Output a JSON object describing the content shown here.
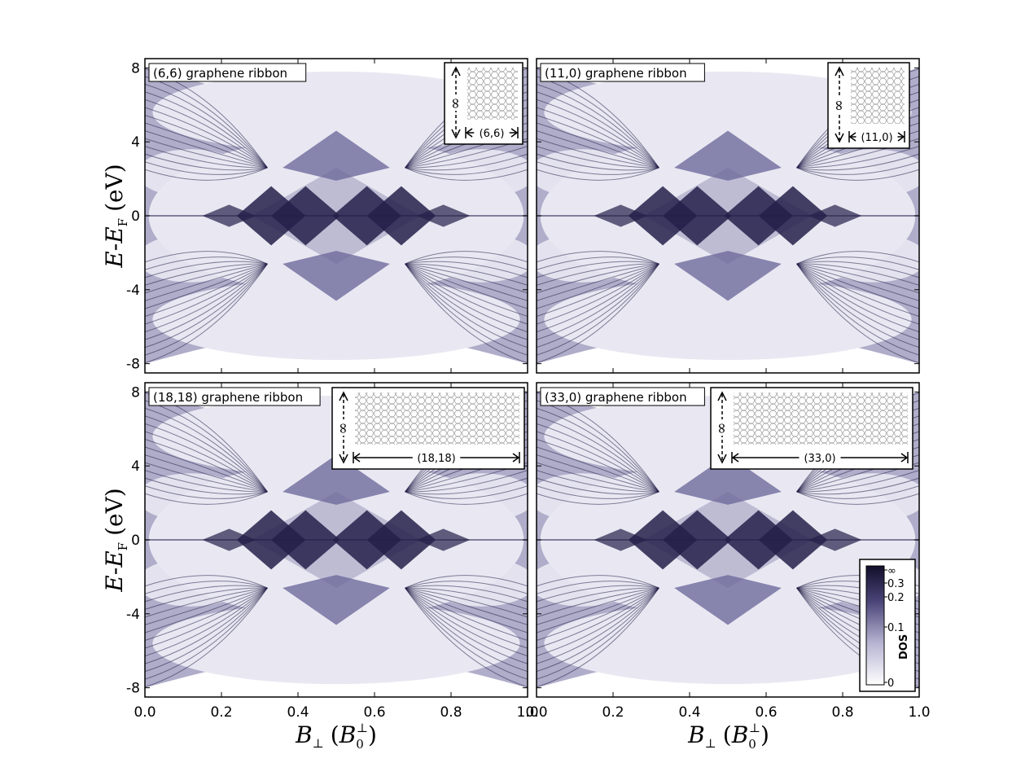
{
  "chart_data": [
    {
      "type": "heatmap",
      "title": "(6,6) graphene ribbon",
      "inset_label": "(6,6)",
      "inset_infinity": "∞",
      "xlabel": "",
      "ylabel": "E-E_F (eV)",
      "xlim": [
        0.0,
        1.0
      ],
      "ylim": [
        -8.5,
        8.5
      ],
      "yticks": [
        "8",
        "4",
        "0",
        "-4",
        "-8"
      ],
      "xticks": []
    },
    {
      "type": "heatmap",
      "title": "(11,0) graphene ribbon",
      "inset_label": "(11,0)",
      "inset_infinity": "∞",
      "xlabel": "",
      "ylabel": "",
      "xlim": [
        0.0,
        1.0
      ],
      "ylim": [
        -8.5,
        8.5
      ],
      "yticks": [],
      "xticks": []
    },
    {
      "type": "heatmap",
      "title": "(18,18) graphene ribbon",
      "inset_label": "(18,18)",
      "inset_infinity": "∞",
      "xlabel": "B⊥ (B0⊥)",
      "ylabel": "E-E_F (eV)",
      "xlim": [
        0.0,
        1.0
      ],
      "ylim": [
        -8.5,
        8.5
      ],
      "yticks": [
        "8",
        "4",
        "0",
        "-4",
        "-8"
      ],
      "xticks": [
        "0.0",
        "0.2",
        "0.4",
        "0.6",
        "0.8",
        "1.0"
      ]
    },
    {
      "type": "heatmap",
      "title": "(33,0) graphene ribbon",
      "inset_label": "(33,0)",
      "inset_infinity": "∞",
      "xlabel": "B⊥ (B0⊥)",
      "ylabel": "",
      "xlim": [
        0.0,
        1.0
      ],
      "ylim": [
        -8.5,
        8.5
      ],
      "yticks": [],
      "xticks": [
        "0.0",
        "0.2",
        "0.4",
        "0.6",
        "0.8",
        "1.0"
      ]
    }
  ],
  "ylabel_parts": {
    "e": "E",
    "dash": "-",
    "ef": "E",
    "sub": "F",
    "unit": "(eV)"
  },
  "xlabel_parts": {
    "b": "B",
    "perp": "⊥",
    "paren_open": "(",
    "b0": "B",
    "sub0": "0",
    "sup": "⊥",
    "paren_close": ")"
  },
  "colorbar": {
    "label": "DOS",
    "ticks": [
      "∞",
      "0.3",
      "0.2",
      "0.1",
      "0"
    ],
    "color_low": "#ffffff",
    "color_high": "#1c1638"
  },
  "colors": {
    "dos_dark": "#24204a",
    "dos_mid": "#6e6a9c",
    "dos_light": "#e9e8f2",
    "background_gap": "#f4f3f8"
  }
}
